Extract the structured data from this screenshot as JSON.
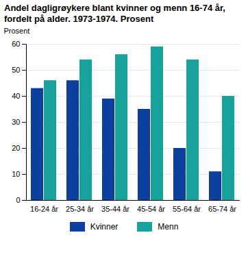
{
  "chart_data": {
    "type": "bar",
    "title": "Andel dagligrøykere blant kvinner og menn 16-74 år, fordelt på alder. 1973-1974. Prosent",
    "y_label": "Prosent",
    "categories": [
      "16-24 år",
      "25-34 år",
      "35-44 år",
      "45-54 år",
      "55-64 år",
      "65-74 år"
    ],
    "series": [
      {
        "name": "Kvinner",
        "color": "#0d3fa0",
        "values": [
          43,
          46,
          39,
          35,
          20,
          11
        ]
      },
      {
        "name": "Menn",
        "color": "#17a39c",
        "values": [
          46,
          54,
          56,
          59,
          54,
          40
        ]
      }
    ],
    "ylim": [
      0,
      60
    ],
    "yticks": [
      0,
      10,
      20,
      30,
      40,
      50,
      60
    ],
    "grid": true,
    "legend": "bottom"
  }
}
